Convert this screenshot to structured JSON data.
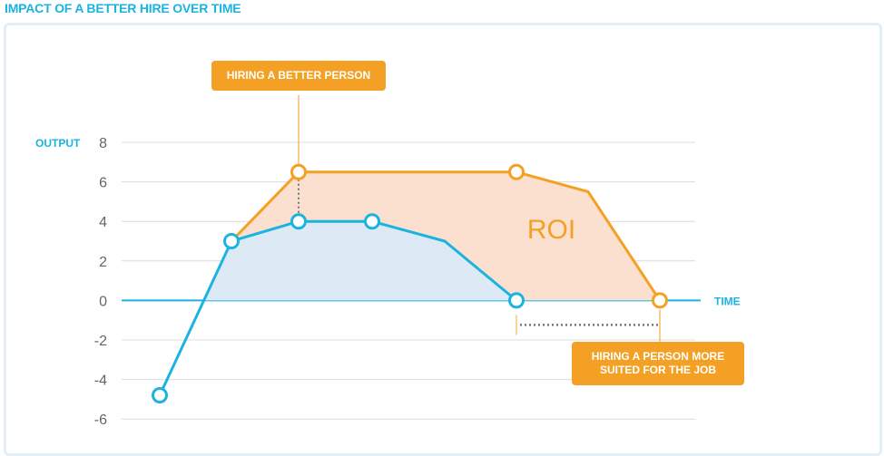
{
  "page": {
    "title": "IMPACT OF A BETTER HIRE OVER TIME"
  },
  "colors": {
    "blue": "#1bb3e0",
    "orange": "#f4a024",
    "blue_fill": "#dde9f5",
    "orange_fill": "#fbe0cf",
    "grid": "#dcdcdc",
    "tick_text": "#666666",
    "connector": "#777777"
  },
  "chart_data": {
    "type": "line",
    "title": "IMPACT OF A BETTER HIRE OVER TIME",
    "xlabel": "TIME",
    "ylabel": "OUTPUT",
    "ylim": [
      -6,
      8
    ],
    "yticks": [
      8,
      6,
      4,
      2,
      0,
      -2,
      -4,
      -6
    ],
    "grid": true,
    "series": [
      {
        "color": "blue",
        "points": [
          {
            "x": 0,
            "y": -4.8,
            "marker": true
          },
          {
            "x": 1,
            "y": 3.0,
            "marker": true
          },
          {
            "x": 2,
            "y": 4.0,
            "marker": true
          },
          {
            "x": 3,
            "y": 4.0,
            "marker": true
          },
          {
            "x": 4,
            "y": 3.0,
            "marker": false
          },
          {
            "x": 5,
            "y": 0.0,
            "marker": true
          }
        ]
      },
      {
        "color": "orange",
        "points": [
          {
            "x": 1,
            "y": 3.0,
            "marker": false
          },
          {
            "x": 2,
            "y": 6.5,
            "marker": true
          },
          {
            "x": 5,
            "y": 6.5,
            "marker": true
          },
          {
            "x": 6,
            "y": 5.5,
            "marker": false
          },
          {
            "x": 7,
            "y": 0.0,
            "marker": true
          }
        ]
      }
    ],
    "annotations": [
      {
        "id": "roi",
        "text": "ROI",
        "x": 5.15,
        "y": 3.6
      },
      {
        "id": "better-person",
        "lines": [
          "HIRING A BETTER PERSON"
        ],
        "x": 2,
        "y": 9.8
      },
      {
        "id": "suited-person",
        "lines": [
          "HIRING A PERSON MORE",
          "SUITED FOR THE JOB"
        ],
        "x": 6.95,
        "y": -3.1
      }
    ]
  }
}
